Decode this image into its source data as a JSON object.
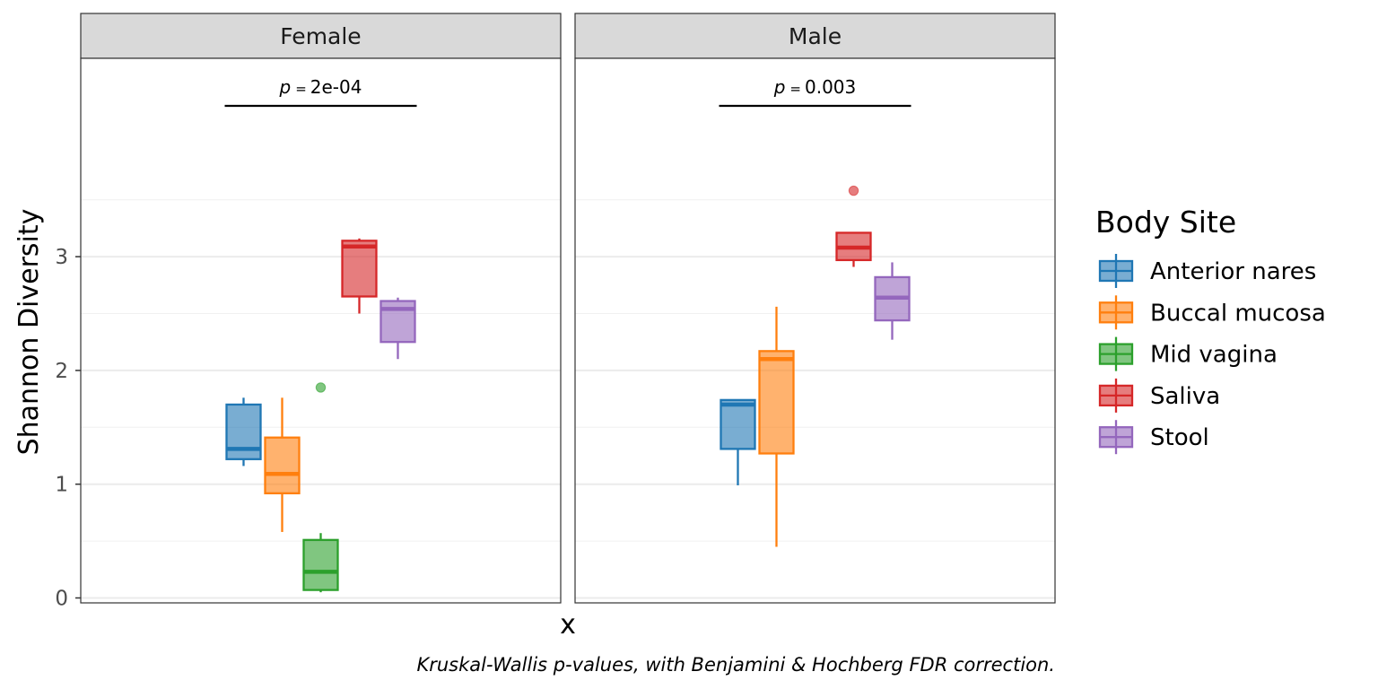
{
  "chart_data": {
    "type": "box",
    "ylabel": "Shannon Diversity",
    "xlabel": "x",
    "ylim": [
      0,
      3.95
    ],
    "yticks": [
      0,
      1,
      2,
      3
    ],
    "grid": true,
    "legend_title": "Body Site",
    "legend_position": "right",
    "caption": "Kruskal-Wallis p-values, with Benjamini & Hochberg FDR correction.",
    "series": [
      {
        "name": "Anterior nares",
        "color": "#1f77b4"
      },
      {
        "name": "Buccal mucosa",
        "color": "#ff7f0e"
      },
      {
        "name": "Mid vagina",
        "color": "#2ca02c"
      },
      {
        "name": "Saliva",
        "color": "#d62728"
      },
      {
        "name": "Stool",
        "color": "#9467bd"
      }
    ],
    "panels": [
      {
        "facet": "Female",
        "p_label": "2e-04",
        "boxes": [
          {
            "group": "Anterior nares",
            "whisker_low": 1.16,
            "q1": 1.22,
            "median": 1.31,
            "q3": 1.7,
            "whisker_high": 1.76,
            "outliers": []
          },
          {
            "group": "Buccal mucosa",
            "whisker_low": 0.58,
            "q1": 0.92,
            "median": 1.09,
            "q3": 1.41,
            "whisker_high": 1.76,
            "outliers": []
          },
          {
            "group": "Mid vagina",
            "whisker_low": 0.05,
            "q1": 0.07,
            "median": 0.23,
            "q3": 0.51,
            "whisker_high": 0.57,
            "outliers": [
              1.85
            ]
          },
          {
            "group": "Saliva",
            "whisker_low": 2.5,
            "q1": 2.65,
            "median": 3.09,
            "q3": 3.14,
            "whisker_high": 3.16,
            "outliers": []
          },
          {
            "group": "Stool",
            "whisker_low": 2.1,
            "q1": 2.25,
            "median": 2.54,
            "q3": 2.61,
            "whisker_high": 2.64,
            "outliers": []
          }
        ]
      },
      {
        "facet": "Male",
        "p_label": "0.003",
        "boxes": [
          {
            "group": "Anterior nares",
            "whisker_low": 0.99,
            "q1": 1.31,
            "median": 1.7,
            "q3": 1.74,
            "whisker_high": 1.74,
            "outliers": []
          },
          {
            "group": "Buccal mucosa",
            "whisker_low": 0.45,
            "q1": 1.27,
            "median": 2.1,
            "q3": 2.17,
            "whisker_high": 2.56,
            "outliers": []
          },
          {
            "group": "Saliva",
            "whisker_low": 2.91,
            "q1": 2.97,
            "median": 3.08,
            "q3": 3.21,
            "whisker_high": 3.21,
            "outliers": [
              3.58
            ]
          },
          {
            "group": "Stool",
            "whisker_low": 2.27,
            "q1": 2.44,
            "median": 2.64,
            "q3": 2.82,
            "whisker_high": 2.95,
            "outliers": []
          }
        ]
      }
    ]
  }
}
